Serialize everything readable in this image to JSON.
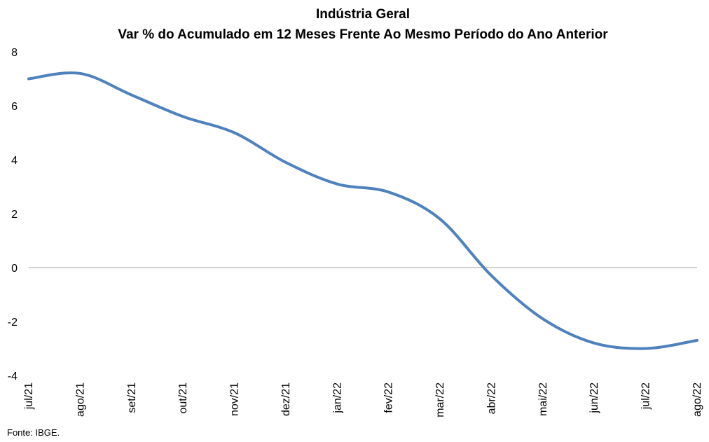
{
  "chart_data": {
    "type": "line",
    "title": "Indústria Geral",
    "subtitle": "Var % do Acumulado em 12 Meses Frente Ao Mesmo Período do Ano Anterior",
    "xlabel": "",
    "ylabel": "",
    "categories": [
      "jul/21",
      "ago/21",
      "set/21",
      "out/21",
      "nov/21",
      "dez/21",
      "jan/22",
      "fev/22",
      "mar/22",
      "abr/22",
      "mai/22",
      "jun/22",
      "jul/22",
      "ago/22"
    ],
    "series": [
      {
        "values": [
          7.0,
          7.2,
          6.4,
          5.6,
          5.0,
          3.9,
          3.1,
          2.8,
          1.8,
          -0.3,
          -1.9,
          -2.8,
          -3.0,
          -2.7
        ],
        "color": "#4f81bd"
      }
    ],
    "ylim": [
      -4,
      8
    ],
    "yticks": [
      "8",
      "6",
      "4",
      "2",
      "0",
      "-2",
      "-4"
    ],
    "zero_line": true,
    "grid": false,
    "legend": "none"
  },
  "source_note": "Fonte: IBGE."
}
